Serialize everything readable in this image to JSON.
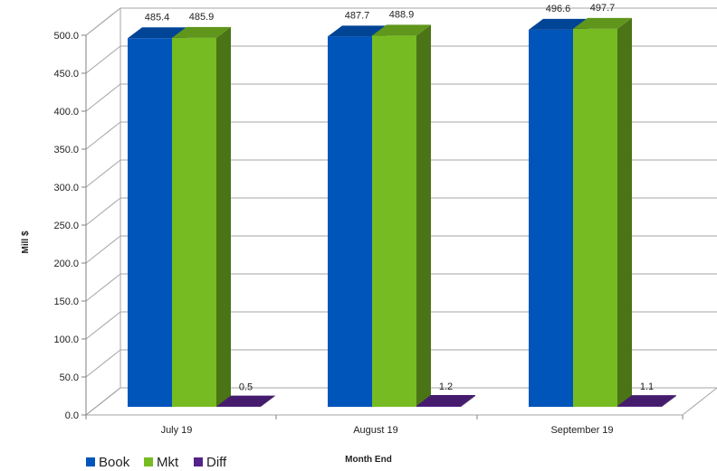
{
  "chart_data": {
    "type": "bar",
    "categories": [
      "July 19",
      "August 19",
      "September 19"
    ],
    "series": [
      {
        "name": "Book",
        "values": [
          485.4,
          487.7,
          496.6
        ],
        "labels": [
          "485.4",
          "487.7",
          "496.6"
        ]
      },
      {
        "name": "Mkt",
        "values": [
          485.9,
          488.9,
          497.7
        ],
        "labels": [
          "485.9",
          "488.9",
          "497.7"
        ]
      },
      {
        "name": "Diff",
        "values": [
          0.5,
          1.2,
          1.1
        ],
        "labels": [
          "0.5",
          "1.2",
          "1.1"
        ]
      }
    ],
    "yticks": [
      "0.0",
      "50.0",
      "100.0",
      "150.0",
      "200.0",
      "250.0",
      "300.0",
      "350.0",
      "400.0",
      "450.0",
      "500.0"
    ],
    "ylim": [
      0,
      500
    ],
    "xlabel": "Month End",
    "ylabel": "Mill $",
    "grid": true,
    "legend_position": "bottom-left",
    "style": "3d-clustered-column",
    "colors": {
      "Book": "#0055bb",
      "Mkt": "#77bb22",
      "Diff": "#552288",
      "gridline": "#a6a6a6"
    }
  }
}
